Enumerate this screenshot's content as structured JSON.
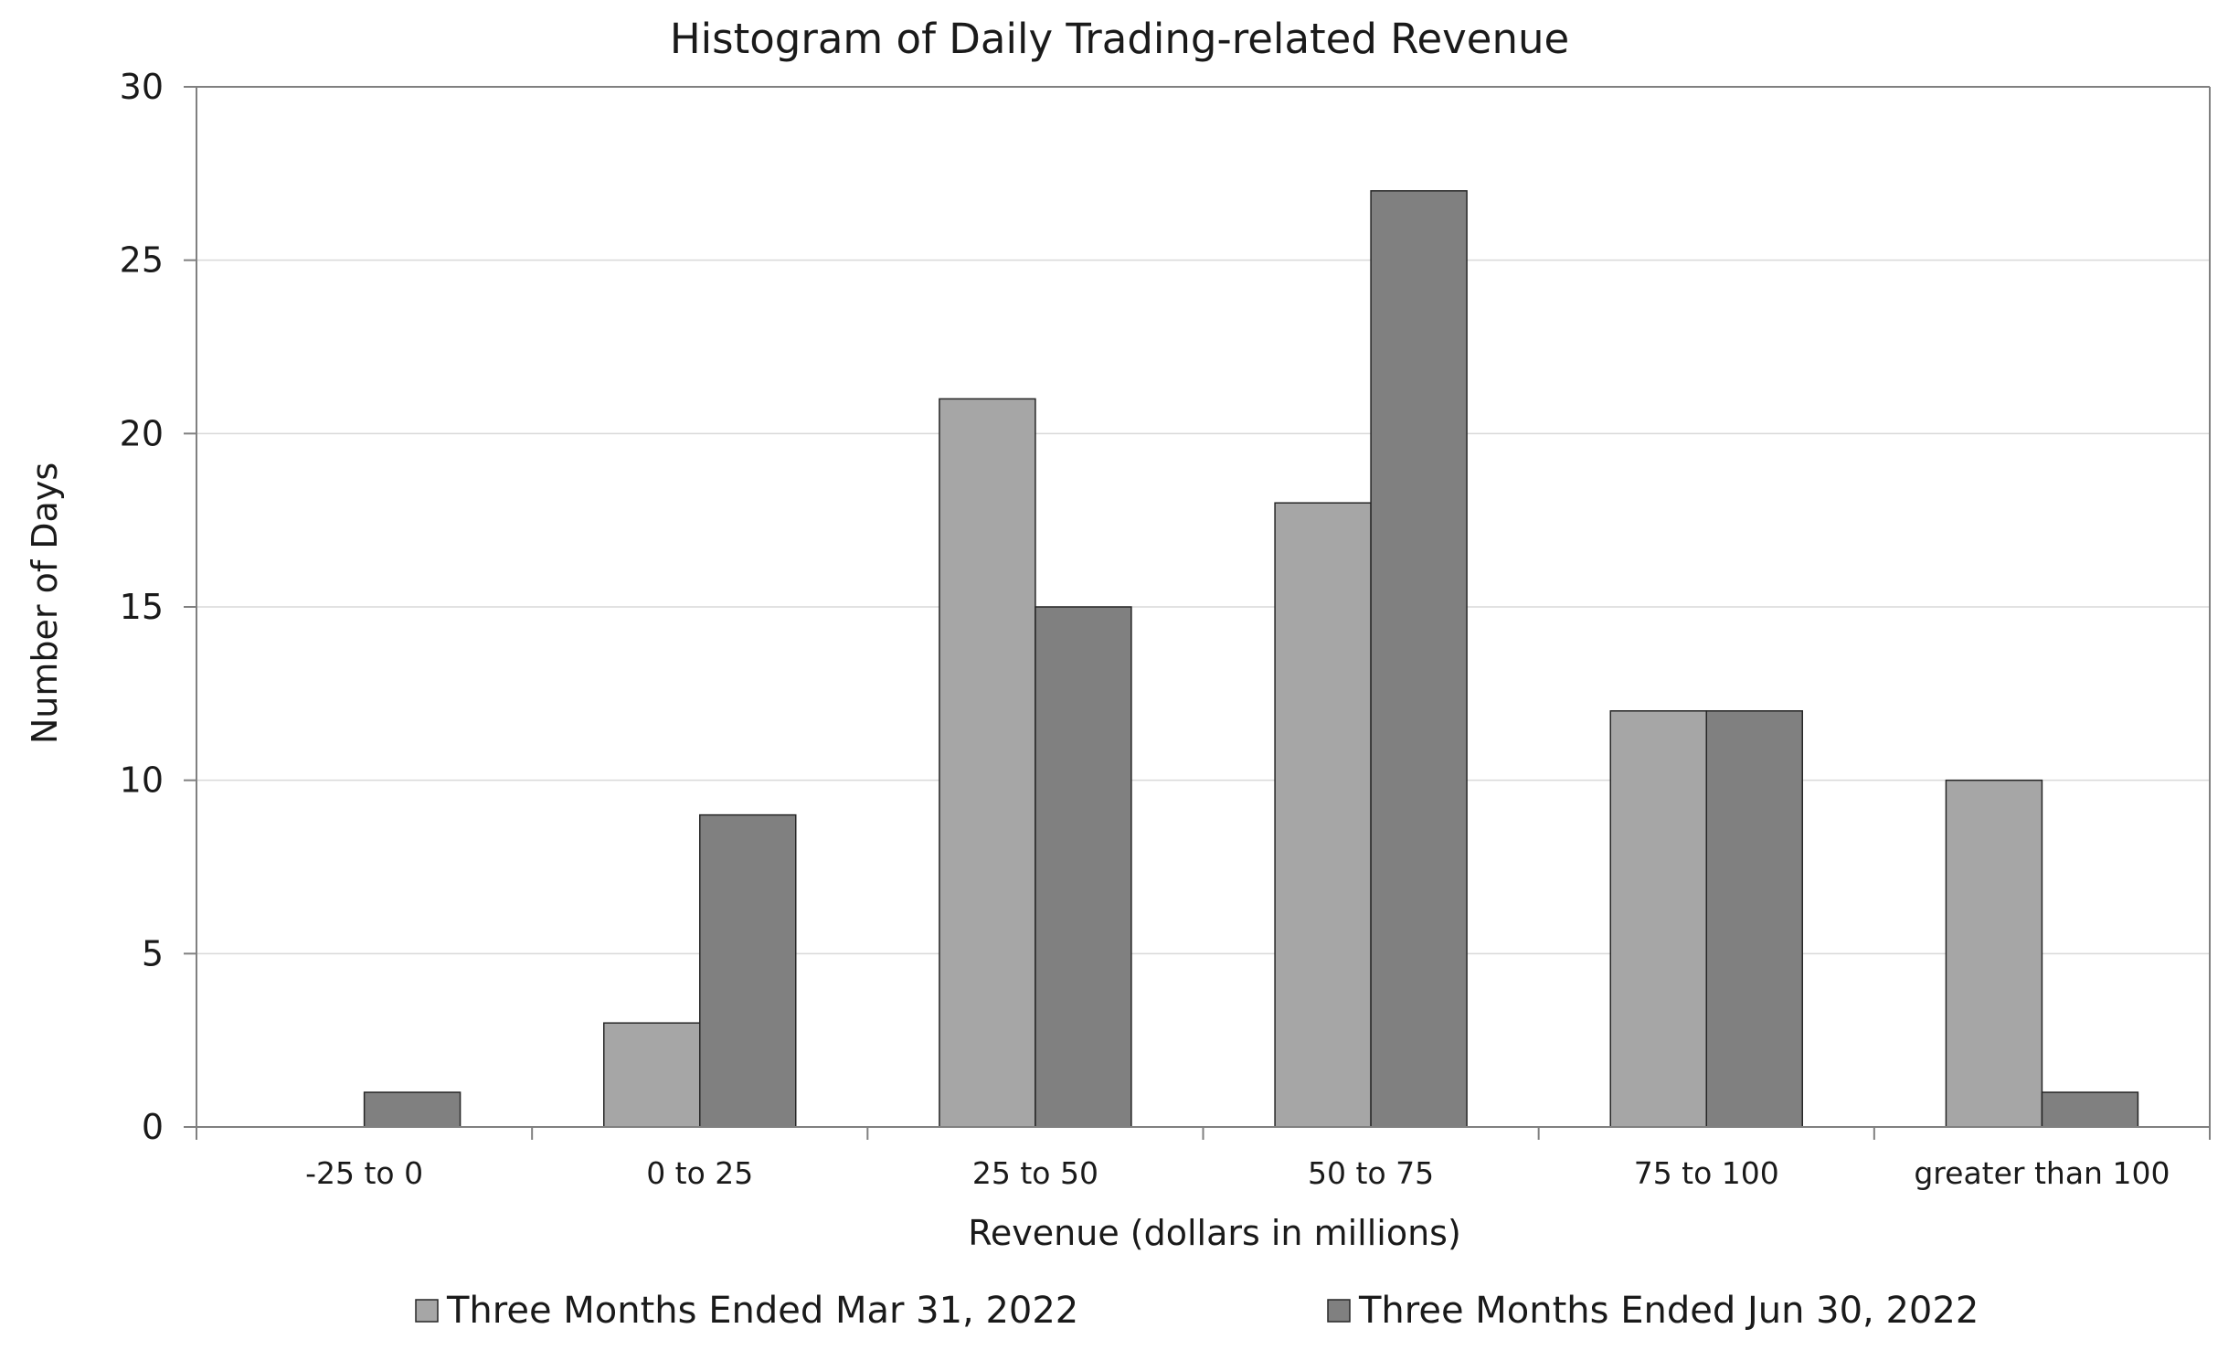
{
  "chart_data": {
    "type": "bar",
    "title": "Histogram of Daily Trading-related Revenue",
    "xlabel": "Revenue (dollars in millions)",
    "ylabel": "Number of Days",
    "ylim": [
      0,
      30
    ],
    "yticks": [
      "0",
      "5",
      "10",
      "15",
      "20",
      "25",
      "30"
    ],
    "grid": true,
    "legend_position": "bottom",
    "categories": [
      "-25 to 0",
      "0 to 25",
      "25 to 50",
      "50 to 75",
      "75 to 100",
      "greater than 100"
    ],
    "series": [
      {
        "name": "Three Months Ended Mar 31, 2022",
        "color": "#a6a6a6",
        "values": [
          0,
          3,
          21,
          18,
          12,
          10
        ]
      },
      {
        "name": "Three Months Ended Jun 30, 2022",
        "color": "#808080",
        "values": [
          1,
          9,
          15,
          27,
          12,
          1
        ]
      }
    ],
    "colors": {
      "gridline": "#d9d9d9",
      "axis": "#808080",
      "bar_outline": "#262626"
    }
  }
}
